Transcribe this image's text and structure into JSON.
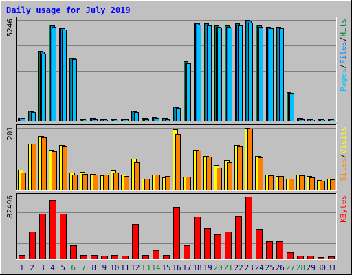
{
  "colors": {
    "frame_bg": "#c0c0c0",
    "plot_bg": "#c0c0c0",
    "title": "#0000ff",
    "hits": "#008040",
    "files": "#0080ff",
    "pages": "#00c0ff",
    "visits": "#ffff00",
    "sites": "#ff8000",
    "kbytes": "#ff0000",
    "weekend_label": "#008040",
    "weekday_label": "#000080"
  },
  "chart_data": {
    "type": "bar",
    "title": "Daily usage for July 2019",
    "days": [
      "1",
      "2",
      "3",
      "4",
      "5",
      "6",
      "7",
      "8",
      "9",
      "10",
      "11",
      "12",
      "13",
      "14",
      "15",
      "16",
      "17",
      "18",
      "19",
      "20",
      "21",
      "22",
      "23",
      "24",
      "25",
      "26",
      "27",
      "28",
      "29",
      "30",
      "31"
    ],
    "weekend_days": [
      "6",
      "7",
      "13",
      "14",
      "20",
      "21",
      "27",
      "28"
    ],
    "panels": [
      {
        "name": "hits",
        "max_label": "5246",
        "ylim": [
          0,
          5246
        ],
        "legend": [
          {
            "text": "Pages",
            "key": "pages"
          },
          {
            "text": "/",
            "key": "sep"
          },
          {
            "text": "Files",
            "key": "files"
          },
          {
            "text": "/",
            "key": "sep"
          },
          {
            "text": "Hits",
            "key": "hits"
          }
        ],
        "series": [
          {
            "name": "Hits",
            "color_key": "hits",
            "values": [
              180,
              530,
              3650,
              4990,
              4850,
              3290,
              95,
              160,
              120,
              120,
              120,
              520,
              140,
              200,
              160,
              740,
              3090,
              5100,
              5050,
              4950,
              4960,
              5060,
              5250,
              4990,
              4900,
              4880,
              1500,
              140,
              120,
              100,
              95
            ]
          },
          {
            "name": "Files",
            "color_key": "files",
            "values": [
              170,
              510,
              3600,
              4950,
              4800,
              3250,
              90,
              150,
              110,
              110,
              110,
              500,
              130,
              190,
              150,
              720,
              3050,
              5050,
              5000,
              4900,
              4900,
              5000,
              5200,
              4950,
              4850,
              4850,
              1480,
              130,
              110,
              95,
              90
            ]
          },
          {
            "name": "Pages",
            "color_key": "pages",
            "values": [
              140,
              460,
              3500,
              4900,
              4750,
              3200,
              60,
              120,
              80,
              80,
              90,
              460,
              100,
              160,
              110,
              680,
              3000,
              4990,
              4950,
              4850,
              4850,
              4950,
              5100,
              4900,
              4800,
              4800,
              1450,
              90,
              80,
              60,
              60
            ]
          }
        ]
      },
      {
        "name": "visits",
        "max_label": "201",
        "ylim": [
          0,
          201
        ],
        "legend": [
          {
            "text": "Sites",
            "key": "sites"
          },
          {
            "text": "/",
            "key": "sep"
          },
          {
            "text": "Visits",
            "key": "visits"
          }
        ],
        "series": [
          {
            "name": "Visits",
            "color_key": "visits",
            "values": [
              65,
              150,
              175,
              130,
              145,
              55,
              58,
              52,
              48,
              62,
              50,
              100,
              35,
              50,
              40,
              197,
              42,
              130,
              110,
              80,
              95,
              145,
              200,
              110,
              50,
              45,
              35,
              50,
              45,
              32,
              35
            ]
          },
          {
            "name": "Sites",
            "color_key": "sites",
            "values": [
              55,
              150,
              170,
              125,
              140,
              50,
              52,
              50,
              50,
              55,
              45,
              90,
              35,
              50,
              45,
              180,
              42,
              128,
              108,
              72,
              90,
              140,
              198,
              105,
              48,
              45,
              35,
              48,
              40,
              30,
              33
            ]
          }
        ]
      },
      {
        "name": "kbytes",
        "max_label": "82496",
        "ylim": [
          0,
          82496
        ],
        "legend": [
          {
            "text": "KBytes",
            "key": "kbytes"
          }
        ],
        "series": [
          {
            "name": "KBytes",
            "color_key": "kbytes",
            "values": [
              5000,
              36000,
              60000,
              78000,
              60000,
              17000,
              4500,
              4500,
              4000,
              5000,
              4000,
              46000,
              4500,
              11000,
              4500,
              69000,
              17000,
              56000,
              40000,
              32000,
              36000,
              57000,
              82496,
              39000,
              23000,
              23000,
              8000,
              4000,
              4000,
              1500,
              3000
            ]
          }
        ]
      }
    ]
  }
}
